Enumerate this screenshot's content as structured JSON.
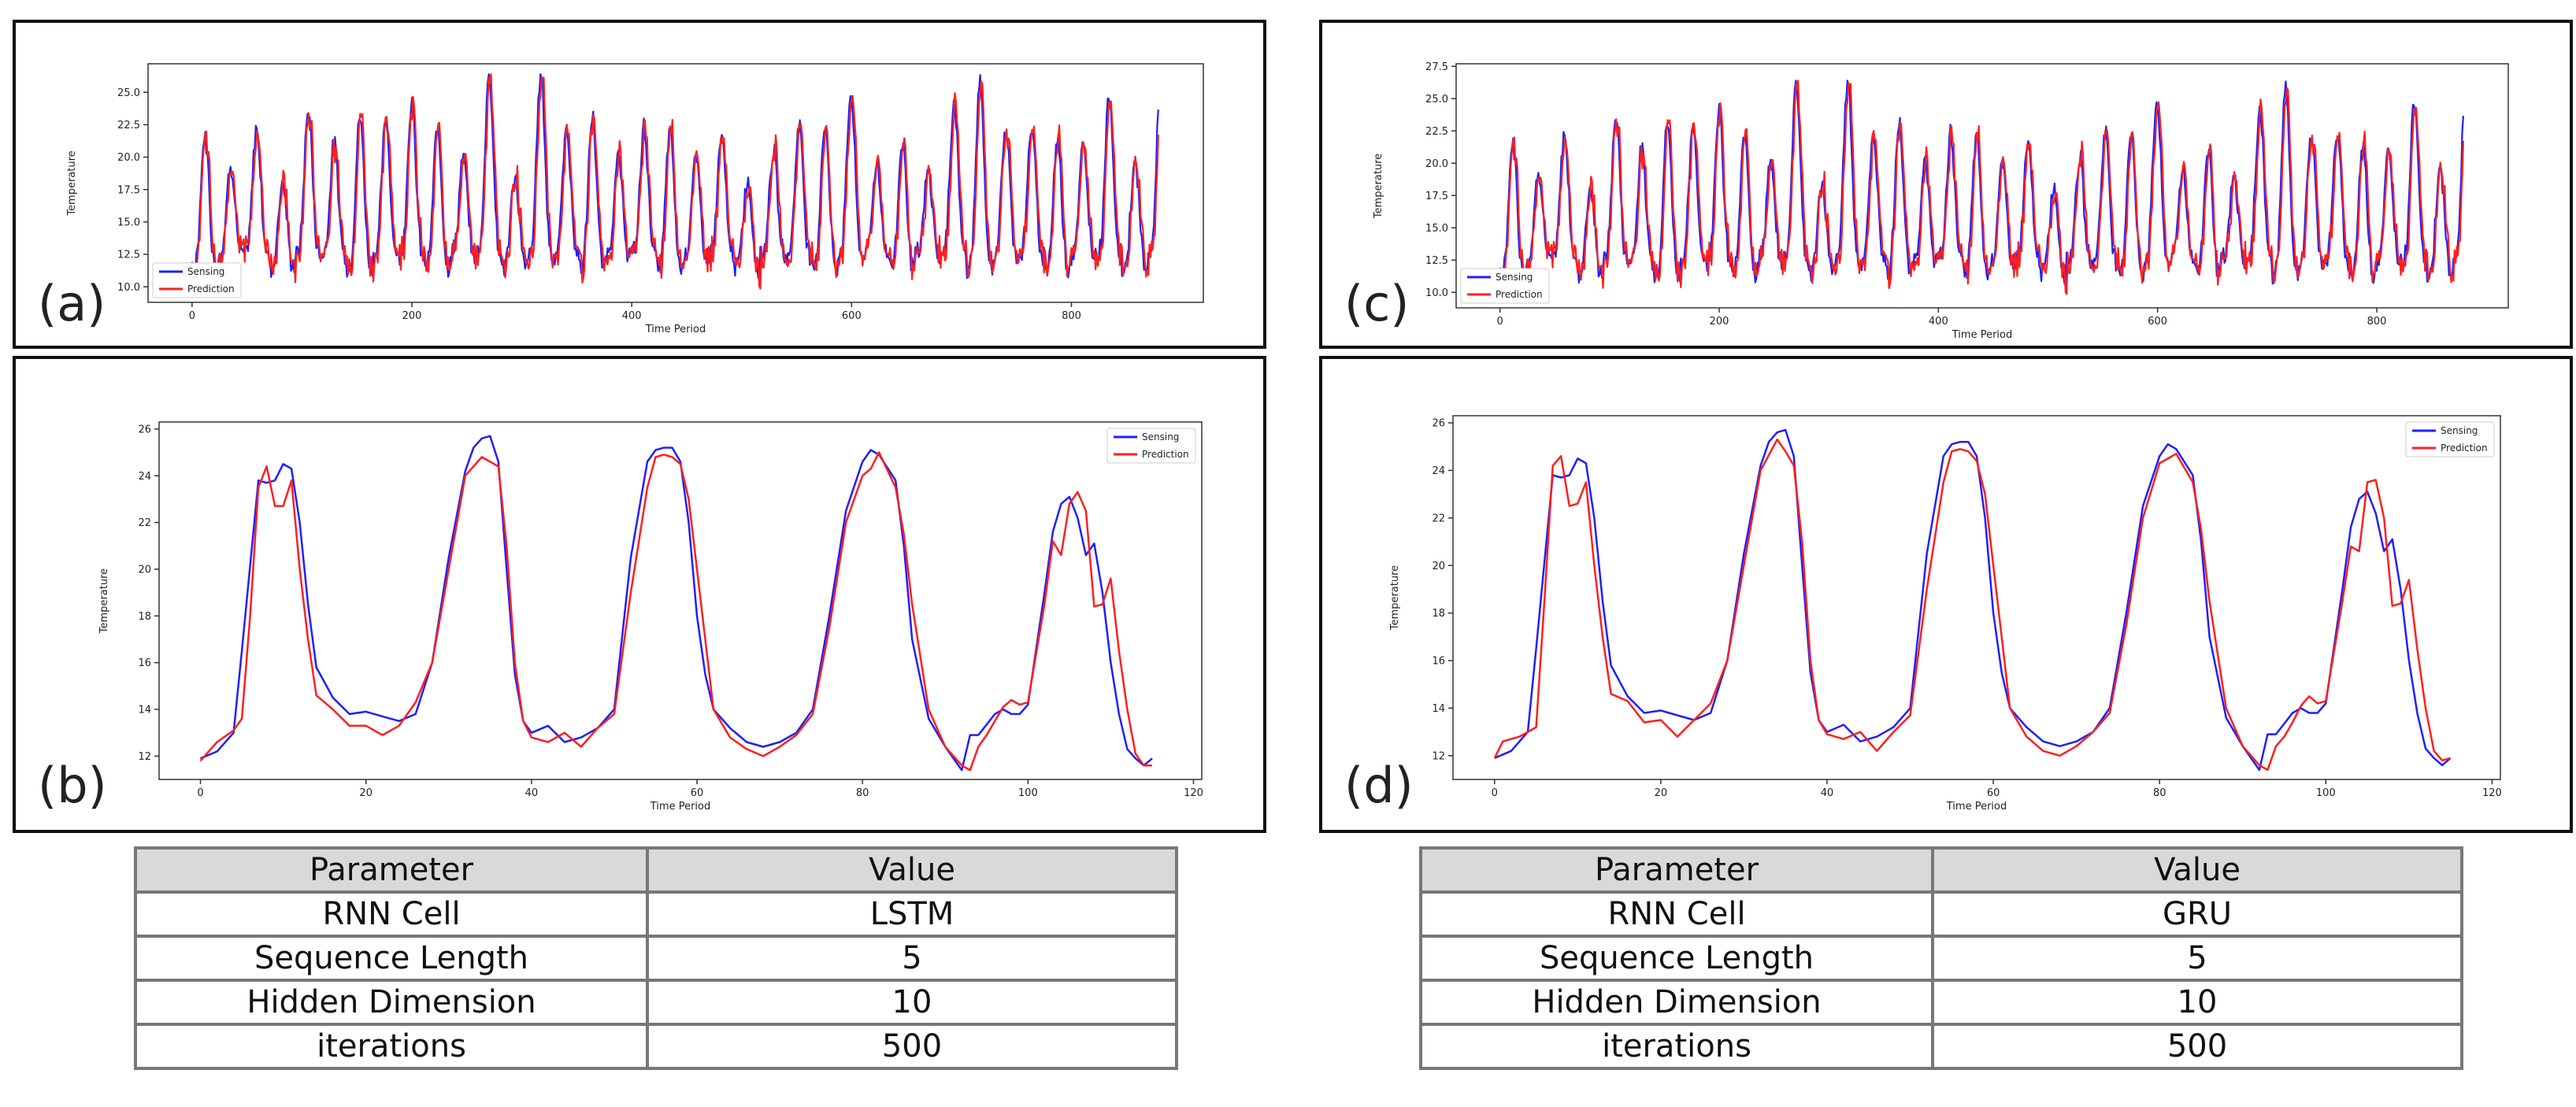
{
  "colors": {
    "sensing": "#1f1fff",
    "prediction": "#ff1f1f",
    "header_bg": "#d9d9d9"
  },
  "panels": [
    {
      "id": "a",
      "label": "(a)"
    },
    {
      "id": "b",
      "label": "(b)"
    },
    {
      "id": "c",
      "label": "(c)"
    },
    {
      "id": "d",
      "label": "(d)"
    }
  ],
  "tables": [
    {
      "headers": [
        "Parameter",
        "Value"
      ],
      "rows": [
        {
          "param": "RNN Cell",
          "value": "LSTM"
        },
        {
          "param": "Sequence Length",
          "value": "5"
        },
        {
          "param": "Hidden Dimension",
          "value": "10"
        },
        {
          "param": "iterations",
          "value": "500"
        }
      ]
    },
    {
      "headers": [
        "Parameter",
        "Value"
      ],
      "rows": [
        {
          "param": "RNN Cell",
          "value": "GRU"
        },
        {
          "param": "Sequence Length",
          "value": "5"
        },
        {
          "param": "Hidden Dimension",
          "value": "10"
        },
        {
          "param": "iterations",
          "value": "500"
        }
      ]
    }
  ],
  "chart_data": [
    {
      "panel": "a",
      "type": "line",
      "xlabel": "Time Period",
      "ylabel": "Temperature",
      "xlim": [
        -40,
        920
      ],
      "ylim": [
        8.8,
        27.2
      ],
      "xticks": [
        0,
        200,
        400,
        600,
        800
      ],
      "yticks": [
        10.0,
        12.5,
        15.0,
        17.5,
        20.0,
        22.5,
        25.0
      ],
      "legend": "lower-left",
      "series_gen": {
        "n": 880,
        "period": 23.5,
        "base": 12.5,
        "seed": 7,
        "pred_lag": 1
      },
      "series": [
        {
          "name": "Sensing",
          "color": "#1f1fff"
        },
        {
          "name": "Prediction",
          "color": "#ff1f1f"
        }
      ]
    },
    {
      "panel": "b",
      "type": "line",
      "xlabel": "Time Period",
      "ylabel": "Temperature",
      "xlim": [
        -5,
        121
      ],
      "ylim": [
        11.0,
        26.3
      ],
      "xticks": [
        0,
        20,
        40,
        60,
        80,
        100,
        120
      ],
      "yticks": [
        12,
        14,
        16,
        18,
        20,
        22,
        24,
        26
      ],
      "legend": "top-right",
      "series": [
        {
          "name": "Sensing",
          "color": "#1f1fff",
          "x": [
            0,
            2,
            4,
            5,
            7,
            8,
            9,
            10,
            11,
            12,
            13,
            14,
            16,
            18,
            20,
            22,
            24,
            26,
            28,
            30,
            32,
            33,
            34,
            35,
            36,
            37,
            38,
            39,
            40,
            42,
            44,
            46,
            48,
            50,
            52,
            54,
            55,
            56,
            57,
            58,
            59,
            60,
            61,
            62,
            64,
            66,
            68,
            70,
            72,
            74,
            76,
            78,
            80,
            81,
            82,
            84,
            85,
            86,
            88,
            90,
            92,
            93,
            94,
            96,
            97,
            98,
            99,
            100,
            102,
            103,
            104,
            105,
            106,
            107,
            108,
            109,
            110,
            111,
            112,
            113,
            114,
            115
          ],
          "y": [
            11.9,
            12.2,
            13.0,
            16.5,
            23.8,
            23.7,
            23.8,
            24.5,
            24.3,
            22.0,
            18.5,
            15.8,
            14.5,
            13.8,
            13.9,
            13.7,
            13.5,
            13.8,
            16.0,
            20.5,
            24.2,
            25.2,
            25.6,
            25.7,
            24.6,
            20.0,
            15.5,
            13.5,
            13.0,
            13.3,
            12.6,
            12.8,
            13.2,
            14.0,
            20.5,
            24.6,
            25.1,
            25.2,
            25.2,
            24.6,
            22.0,
            18.0,
            15.5,
            14.0,
            13.2,
            12.6,
            12.4,
            12.6,
            13.0,
            14.0,
            18.0,
            22.5,
            24.6,
            25.1,
            24.9,
            23.8,
            21.0,
            17.0,
            13.6,
            12.4,
            11.4,
            12.9,
            12.9,
            13.8,
            14.0,
            13.8,
            13.8,
            14.2,
            19.0,
            21.6,
            22.8,
            23.1,
            22.2,
            20.6,
            21.1,
            19.0,
            16.0,
            13.8,
            12.3,
            11.9,
            11.6,
            11.9
          ]
        },
        {
          "name": "Prediction",
          "color": "#ff1f1f",
          "x": [
            0,
            2,
            4,
            5,
            6,
            7,
            8,
            9,
            10,
            11,
            12,
            13,
            14,
            16,
            18,
            20,
            22,
            24,
            26,
            28,
            30,
            32,
            34,
            35,
            36,
            37,
            38,
            39,
            40,
            42,
            44,
            46,
            48,
            50,
            52,
            54,
            55,
            56,
            57,
            58,
            59,
            60,
            61,
            62,
            64,
            66,
            68,
            70,
            72,
            74,
            76,
            78,
            80,
            81,
            82,
            84,
            85,
            86,
            88,
            90,
            92,
            93,
            94,
            95,
            96,
            97,
            98,
            99,
            100,
            102,
            103,
            104,
            105,
            106,
            107,
            108,
            109,
            110,
            111,
            112,
            113,
            114,
            115
          ],
          "y": [
            11.8,
            12.6,
            13.1,
            13.6,
            18.0,
            23.5,
            24.4,
            22.7,
            22.7,
            23.8,
            20.0,
            17.0,
            14.6,
            14.0,
            13.3,
            13.3,
            12.9,
            13.3,
            14.3,
            16.0,
            20.0,
            24.0,
            24.8,
            24.6,
            24.4,
            21.0,
            16.0,
            13.5,
            12.8,
            12.6,
            13.0,
            12.4,
            13.2,
            13.8,
            19.0,
            23.5,
            24.8,
            24.9,
            24.8,
            24.5,
            23.0,
            20.0,
            17.0,
            14.0,
            12.8,
            12.3,
            12.0,
            12.4,
            12.9,
            13.8,
            17.5,
            22.0,
            24.0,
            24.3,
            25.0,
            23.5,
            21.5,
            18.5,
            14.0,
            12.4,
            11.6,
            11.4,
            12.4,
            12.9,
            13.5,
            14.1,
            14.4,
            14.2,
            14.3,
            18.5,
            21.2,
            20.6,
            22.8,
            23.3,
            22.5,
            18.4,
            18.5,
            19.6,
            16.5,
            14.0,
            12.1,
            11.6,
            11.6
          ]
        }
      ]
    },
    {
      "panel": "c",
      "type": "line",
      "xlabel": "Time Period",
      "ylabel": "Temperature",
      "xlim": [
        -40,
        920
      ],
      "ylim": [
        8.8,
        27.7
      ],
      "xticks": [
        0,
        200,
        400,
        600,
        800
      ],
      "yticks": [
        10.0,
        12.5,
        15.0,
        17.5,
        20.0,
        22.5,
        25.0,
        27.5
      ],
      "legend": "lower-left",
      "series_gen": {
        "n": 880,
        "period": 23.5,
        "base": 12.5,
        "seed": 7,
        "pred_lag": 1
      },
      "series": [
        {
          "name": "Sensing",
          "color": "#1f1fff"
        },
        {
          "name": "Prediction",
          "color": "#ff1f1f"
        }
      ]
    },
    {
      "panel": "d",
      "type": "line",
      "xlabel": "Time Period",
      "ylabel": "Temperature",
      "xlim": [
        -5,
        121
      ],
      "ylim": [
        11.0,
        26.3
      ],
      "xticks": [
        0,
        20,
        40,
        60,
        80,
        100,
        120
      ],
      "yticks": [
        12,
        14,
        16,
        18,
        20,
        22,
        24,
        26
      ],
      "legend": "top-right",
      "series": [
        {
          "name": "Sensing",
          "color": "#1f1fff",
          "x": [
            0,
            2,
            4,
            5,
            7,
            8,
            9,
            10,
            11,
            12,
            13,
            14,
            16,
            18,
            20,
            22,
            24,
            26,
            28,
            30,
            32,
            33,
            34,
            35,
            36,
            37,
            38,
            39,
            40,
            42,
            44,
            46,
            48,
            50,
            52,
            54,
            55,
            56,
            57,
            58,
            59,
            60,
            61,
            62,
            64,
            66,
            68,
            70,
            72,
            74,
            76,
            78,
            80,
            81,
            82,
            84,
            85,
            86,
            88,
            90,
            92,
            93,
            94,
            96,
            97,
            98,
            99,
            100,
            102,
            103,
            104,
            105,
            106,
            107,
            108,
            109,
            110,
            111,
            112,
            113,
            114,
            115
          ],
          "y": [
            11.9,
            12.2,
            13.0,
            16.5,
            23.8,
            23.7,
            23.8,
            24.5,
            24.3,
            22.0,
            18.5,
            15.8,
            14.5,
            13.8,
            13.9,
            13.7,
            13.5,
            13.8,
            16.0,
            20.5,
            24.2,
            25.2,
            25.6,
            25.7,
            24.6,
            20.0,
            15.5,
            13.5,
            13.0,
            13.3,
            12.6,
            12.8,
            13.2,
            14.0,
            20.5,
            24.6,
            25.1,
            25.2,
            25.2,
            24.6,
            22.0,
            18.0,
            15.5,
            14.0,
            13.2,
            12.6,
            12.4,
            12.6,
            13.0,
            14.0,
            18.0,
            22.5,
            24.6,
            25.1,
            24.9,
            23.8,
            21.0,
            17.0,
            13.6,
            12.4,
            11.4,
            12.9,
            12.9,
            13.8,
            14.0,
            13.8,
            13.8,
            14.2,
            19.0,
            21.6,
            22.8,
            23.1,
            22.2,
            20.6,
            21.1,
            19.0,
            16.0,
            13.8,
            12.3,
            11.9,
            11.6,
            11.9
          ]
        },
        {
          "name": "Prediction",
          "color": "#ff1f1f",
          "x": [
            0,
            1,
            3,
            5,
            6,
            7,
            8,
            9,
            10,
            11,
            12,
            13,
            14,
            16,
            18,
            20,
            22,
            24,
            26,
            28,
            30,
            32,
            34,
            35,
            36,
            37,
            38,
            39,
            40,
            42,
            44,
            46,
            48,
            50,
            52,
            54,
            55,
            56,
            57,
            58,
            59,
            60,
            61,
            62,
            64,
            66,
            68,
            70,
            72,
            74,
            76,
            78,
            80,
            81,
            82,
            84,
            85,
            86,
            88,
            90,
            92,
            93,
            94,
            95,
            96,
            97,
            98,
            99,
            100,
            102,
            103,
            104,
            105,
            106,
            107,
            108,
            109,
            110,
            111,
            112,
            113,
            114,
            115
          ],
          "y": [
            11.9,
            12.6,
            12.8,
            13.2,
            18.5,
            24.2,
            24.6,
            22.5,
            22.6,
            23.5,
            20.0,
            17.0,
            14.6,
            14.3,
            13.4,
            13.5,
            12.8,
            13.5,
            14.2,
            16.0,
            20.0,
            24.0,
            25.3,
            24.8,
            24.2,
            21.0,
            16.0,
            13.5,
            12.9,
            12.7,
            13.0,
            12.2,
            13.0,
            13.7,
            19.0,
            23.5,
            24.8,
            24.9,
            24.8,
            24.4,
            23.0,
            20.0,
            17.0,
            14.0,
            12.8,
            12.2,
            12.0,
            12.4,
            13.0,
            13.8,
            17.5,
            22.0,
            24.3,
            24.5,
            24.7,
            23.5,
            21.5,
            18.5,
            14.0,
            12.4,
            11.6,
            11.4,
            12.4,
            12.8,
            13.4,
            14.1,
            14.5,
            14.2,
            14.3,
            18.5,
            20.8,
            20.6,
            23.5,
            23.6,
            22.0,
            18.3,
            18.4,
            19.4,
            16.5,
            14.0,
            12.2,
            11.8,
            11.9
          ]
        }
      ]
    }
  ]
}
